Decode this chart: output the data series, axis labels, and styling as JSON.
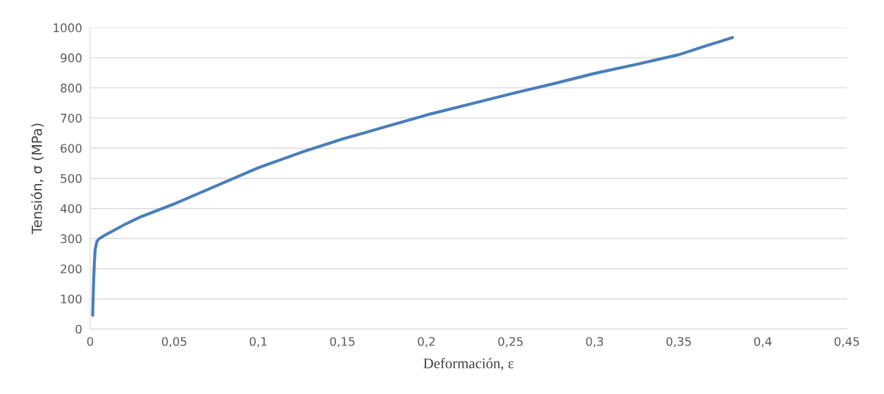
{
  "chart_data": {
    "type": "line",
    "xlabel": "Deformación, ε",
    "ylabel": "Tensión, σ (MPa)",
    "series": [
      {
        "color": "#4a7ebb",
        "x": [
          0.0015,
          0.0017,
          0.002,
          0.0025,
          0.003,
          0.004,
          0.005,
          0.007,
          0.01,
          0.02,
          0.03,
          0.05,
          0.075,
          0.1,
          0.125,
          0.15,
          0.175,
          0.2,
          0.225,
          0.25,
          0.275,
          0.3,
          0.325,
          0.35,
          0.365,
          0.382
        ],
        "values": [
          45,
          90,
          150,
          220,
          265,
          290,
          298,
          305,
          315,
          345,
          372,
          415,
          475,
          535,
          585,
          630,
          670,
          710,
          745,
          780,
          813,
          848,
          878,
          910,
          937,
          967
        ]
      }
    ],
    "xlim": [
      0,
      0.45
    ],
    "xticks": [
      0,
      {
        "value": 0.05,
        "label": "0,05"
      },
      {
        "value": 0.1,
        "label": "0,1"
      },
      {
        "value": 0.15,
        "label": "0,15"
      },
      {
        "value": 0.2,
        "label": "0,2"
      },
      {
        "value": 0.25,
        "label": "0,25"
      },
      {
        "value": 0.3,
        "label": "0,3"
      },
      {
        "value": 0.35,
        "label": "0,35"
      },
      {
        "value": 0.4,
        "label": "0,4"
      },
      {
        "value": 0.45,
        "label": "0,45"
      }
    ],
    "ylim": [
      0,
      1000
    ],
    "yticks": [
      0,
      100,
      200,
      300,
      400,
      500,
      600,
      700,
      800,
      900,
      1000
    ],
    "grid": "y",
    "marker": "none",
    "line_style": "solid",
    "legend": false
  }
}
